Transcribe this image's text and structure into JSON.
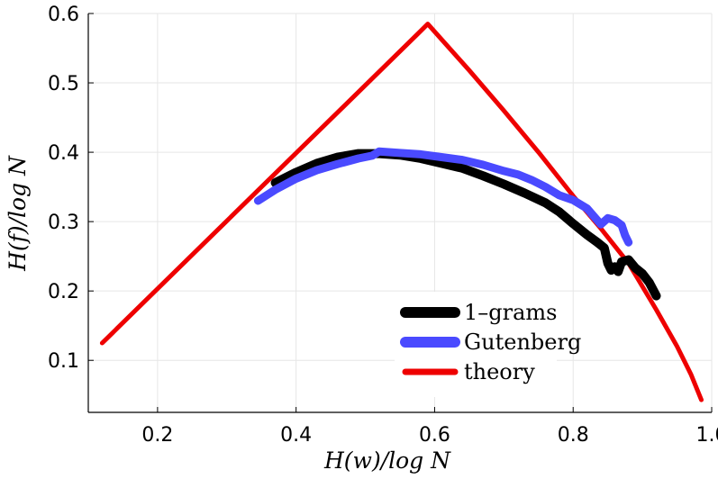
{
  "chart_data": {
    "type": "line",
    "xlabel": "H(w)/log N",
    "ylabel": "H(f)/log N",
    "xlim": [
      0.1,
      1.0
    ],
    "ylim": [
      0.025,
      0.6
    ],
    "x_ticks": [
      0.2,
      0.4,
      0.6,
      0.8,
      1.0
    ],
    "x_tick_labels": [
      "0.2",
      "0.4",
      "0.6",
      "0.8",
      "1.0"
    ],
    "y_ticks": [
      0.1,
      0.2,
      0.3,
      0.4,
      0.5,
      0.6
    ],
    "y_tick_labels": [
      "0.1",
      "0.2",
      "0.3",
      "0.4",
      "0.5",
      "0.6"
    ],
    "grid": true,
    "legend_position": "bottom-right",
    "series": [
      {
        "name": "1–grams",
        "color": "#000000",
        "x": [
          0.37,
          0.4,
          0.43,
          0.46,
          0.49,
          0.52,
          0.55,
          0.58,
          0.61,
          0.64,
          0.67,
          0.7,
          0.73,
          0.76,
          0.78,
          0.8,
          0.82,
          0.835,
          0.845,
          0.85,
          0.855,
          0.86,
          0.865,
          0.87,
          0.88,
          0.89,
          0.9,
          0.91,
          0.92
        ],
        "y": [
          0.356,
          0.371,
          0.384,
          0.393,
          0.398,
          0.398,
          0.396,
          0.391,
          0.384,
          0.377,
          0.366,
          0.354,
          0.341,
          0.327,
          0.314,
          0.297,
          0.281,
          0.27,
          0.262,
          0.24,
          0.23,
          0.235,
          0.228,
          0.242,
          0.245,
          0.233,
          0.225,
          0.212,
          0.193
        ]
      },
      {
        "name": "Gutenberg",
        "color": "#4a4aff",
        "x": [
          0.345,
          0.37,
          0.4,
          0.43,
          0.46,
          0.49,
          0.51,
          0.52,
          0.55,
          0.58,
          0.61,
          0.64,
          0.67,
          0.7,
          0.72,
          0.74,
          0.76,
          0.78,
          0.8,
          0.82,
          0.84,
          0.85,
          0.86,
          0.87,
          0.875,
          0.88
        ],
        "y": [
          0.33,
          0.346,
          0.362,
          0.374,
          0.383,
          0.391,
          0.395,
          0.401,
          0.399,
          0.397,
          0.393,
          0.389,
          0.382,
          0.373,
          0.368,
          0.36,
          0.35,
          0.338,
          0.331,
          0.319,
          0.296,
          0.305,
          0.302,
          0.295,
          0.28,
          0.27
        ]
      },
      {
        "name": "theory",
        "color": "#ee0000",
        "x": [
          0.12,
          0.58,
          0.59,
          0.65,
          0.7,
          0.75,
          0.8,
          0.84,
          0.88,
          0.92,
          0.95,
          0.97,
          0.985
        ],
        "y": [
          0.125,
          0.575,
          0.585,
          0.518,
          0.46,
          0.4,
          0.337,
          0.29,
          0.24,
          0.173,
          0.12,
          0.08,
          0.043
        ]
      }
    ]
  }
}
